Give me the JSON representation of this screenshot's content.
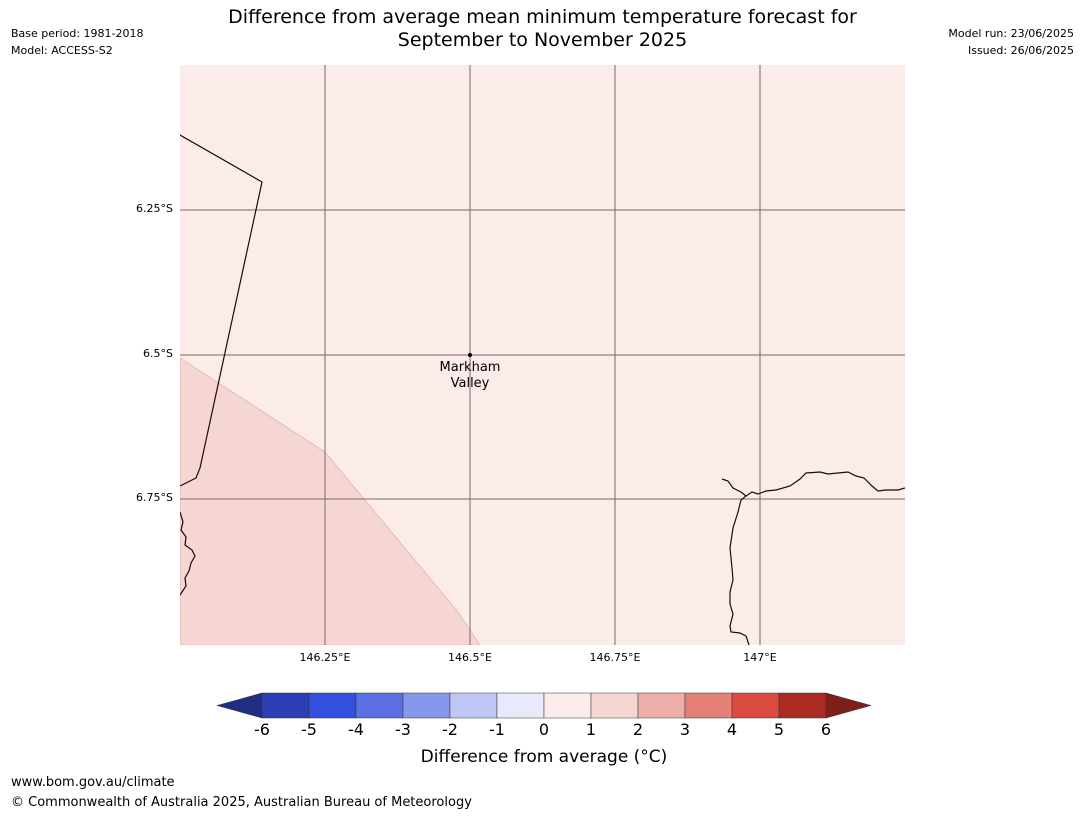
{
  "header": {
    "base_period": "Base period: 1981-2018",
    "model": "Model: ACCESS-S2",
    "model_run": "Model run: 23/06/2025",
    "issued": "Issued: 26/06/2025",
    "title_line1": "Difference from average mean minimum temperature forecast for",
    "title_line2": "September to November 2025"
  },
  "map": {
    "fill_colors": {
      "zero_to_one": "#fbebe9",
      "one_to_two": "#f5d6d3"
    },
    "lat_labels": [
      "6.25°S",
      "6.5°S",
      "6.75°S"
    ],
    "lon_labels": [
      "146.25°E",
      "146.5°E",
      "146.75°E",
      "147°E"
    ],
    "place": {
      "name_line1": "Markham",
      "name_line2": "Valley"
    }
  },
  "colorbar": {
    "ticks": [
      "-6",
      "-5",
      "-4",
      "-3",
      "-2",
      "-1",
      "0",
      "1",
      "2",
      "3",
      "4",
      "5",
      "6"
    ],
    "colors": {
      "below_min": "#1f2e80",
      "bins": [
        "#2a3eb5",
        "#324fdd",
        "#5a70e4",
        "#8797ec",
        "#bfc6f5",
        "#e8eafc",
        "#fbebe9",
        "#f5d6d3",
        "#eeaea9",
        "#e48078",
        "#da4a3e",
        "#ac2a21"
      ],
      "above_max": "#7e1f1a"
    },
    "title": "Difference from average (°C)"
  },
  "footer": {
    "url": "www.bom.gov.au/climate",
    "copyright": "© Commonwealth of Australia 2025, Australian Bureau of Meteorology"
  }
}
